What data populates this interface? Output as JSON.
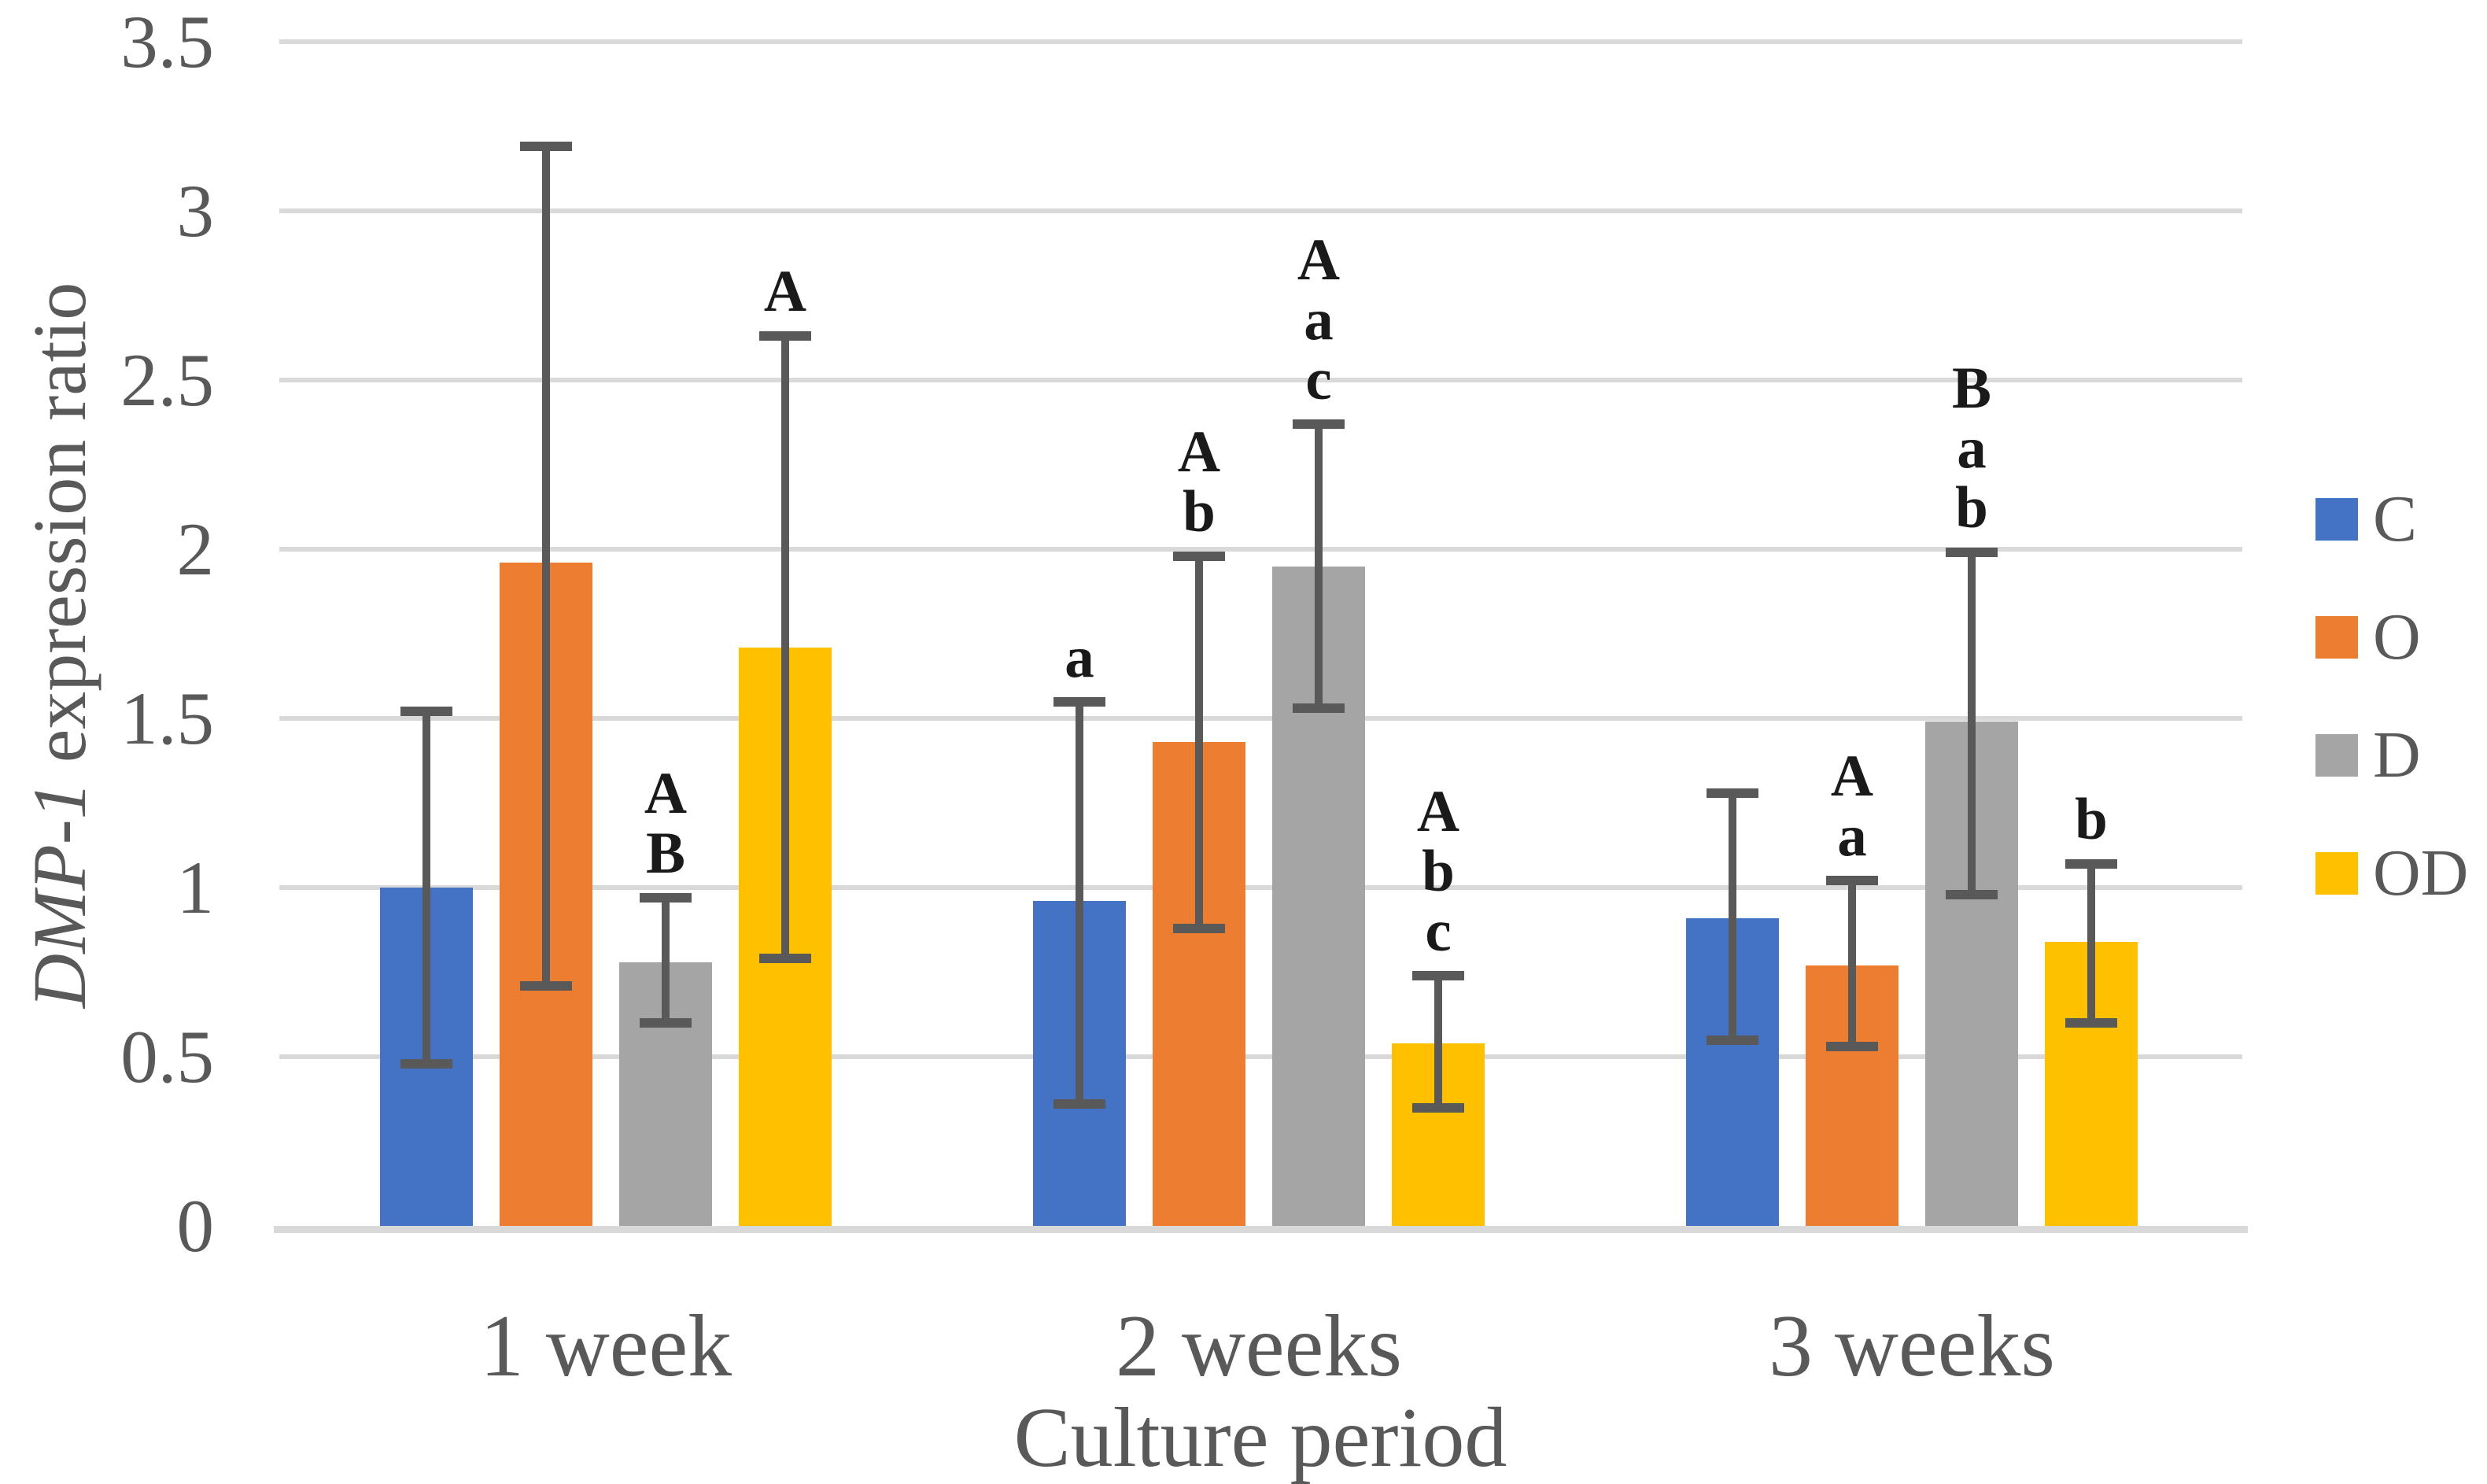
{
  "figure_type": "grouped-bar-chart-with-error-bars",
  "chart_data": {
    "type": "bar",
    "title": "",
    "xlabel": "Culture period",
    "ylabel": "DMP-1 expression ratio",
    "ylabel_italic": "DMP-1",
    "ylabel_rest": " expression ratio",
    "ylim": [
      0,
      3.5
    ],
    "ytick_step": 0.5,
    "yticks": [
      "0",
      "0.5",
      "1",
      "1.5",
      "2",
      "2.5",
      "3",
      "3.5"
    ],
    "grid": true,
    "legend_position": "right",
    "categories": [
      "1 week",
      "2 weeks",
      "3 weeks"
    ],
    "series": [
      {
        "name": "C",
        "color": "#4472C4",
        "values": [
          1.0,
          0.96,
          0.91
        ],
        "err_low": [
          0.48,
          0.36,
          0.55
        ],
        "err_high": [
          1.52,
          1.55,
          1.28
        ],
        "annotations": [
          [],
          [
            "a"
          ],
          []
        ]
      },
      {
        "name": "O",
        "color": "#ED7D31",
        "values": [
          1.96,
          1.43,
          0.77
        ],
        "err_low": [
          0.71,
          0.88,
          0.53
        ],
        "err_high": [
          3.19,
          1.98,
          1.02
        ],
        "annotations": [
          [],
          [
            "A",
            "b"
          ],
          [
            "A",
            "a"
          ]
        ]
      },
      {
        "name": "D",
        "color": "#A5A5A5",
        "values": [
          0.78,
          1.95,
          1.49
        ],
        "err_low": [
          0.6,
          1.53,
          0.98
        ],
        "err_high": [
          0.97,
          2.37,
          1.99
        ],
        "annotations": [
          [
            "A",
            "B"
          ],
          [
            "A",
            "a",
            "c"
          ],
          [
            "B",
            "a",
            "b"
          ]
        ]
      },
      {
        "name": "OD",
        "color": "#FFC000",
        "values": [
          1.71,
          0.54,
          0.84
        ],
        "err_low": [
          0.79,
          0.35,
          0.6
        ],
        "err_high": [
          2.63,
          0.74,
          1.07
        ],
        "annotations": [
          [
            "A"
          ],
          [
            "A",
            "b",
            "c"
          ],
          [
            "b"
          ]
        ]
      }
    ],
    "colors": {
      "gridline": "#D9D9D9",
      "error_bar": "#595959",
      "axis_text": "#595959",
      "annotation_text": "#1a1a1a",
      "background": "#ffffff"
    }
  }
}
